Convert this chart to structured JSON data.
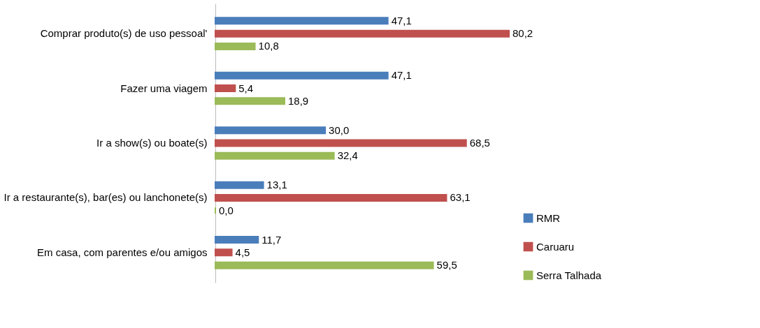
{
  "chart_data": {
    "type": "bar",
    "orientation": "horizontal",
    "categories": [
      "Comprar produto(s) de uso pessoal'",
      "Fazer uma viagem",
      "Ir a show(s) ou boate(s)",
      "Ir a restaurante(s), bar(es) ou lanchonete(s)",
      "Em casa, com parentes e/ou amigos"
    ],
    "series": [
      {
        "name": "RMR",
        "color": "#4a7ebb",
        "values": [
          47.1,
          47.1,
          30.0,
          13.1,
          11.7
        ],
        "value_labels": [
          "47,1",
          "47,1",
          "30,0",
          "13,1",
          "11,7"
        ]
      },
      {
        "name": "Caruaru",
        "color": "#c0504d",
        "values": [
          80.2,
          5.4,
          68.5,
          63.1,
          4.5
        ],
        "value_labels": [
          "80,2",
          "5,4",
          "68,5",
          "63,1",
          "4,5"
        ]
      },
      {
        "name": "Serra Talhada",
        "color": "#9bbb59",
        "values": [
          10.8,
          18.9,
          32.4,
          0.0,
          59.5
        ],
        "value_labels": [
          "10,8",
          "18,9",
          "32,4",
          "0,0",
          "59,5"
        ]
      }
    ],
    "legend": "bottom right",
    "grid": false
  }
}
